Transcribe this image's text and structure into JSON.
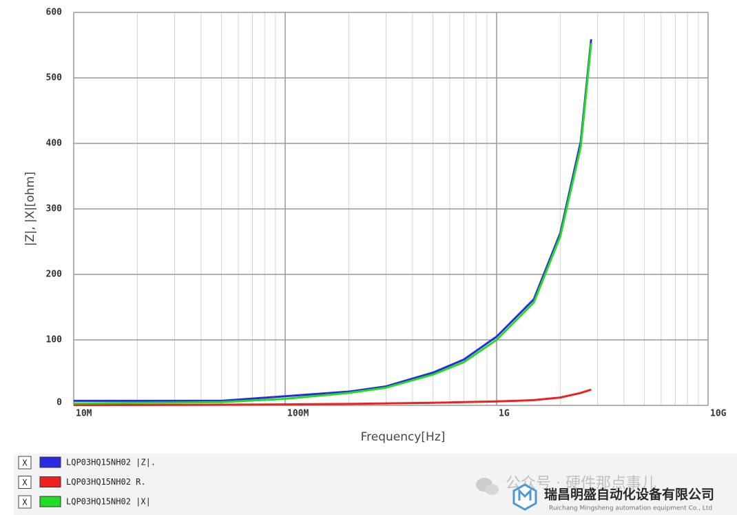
{
  "chart_data": {
    "type": "line",
    "x_label": "Frequency[Hz]",
    "y_label": "|Z|, |X|[ohm]",
    "x": [
      10000000,
      50000000,
      100000000,
      200000000,
      300000000,
      500000000,
      700000000,
      1000000000,
      1500000000,
      2000000000,
      2500000000,
      2800000000
    ],
    "series": [
      {
        "name": "LQP03HQ15NH02  |Z|.",
        "color": "#2a2ae0",
        "values": [
          7,
          7,
          14,
          21,
          29,
          50,
          70,
          105,
          162,
          263,
          403,
          559
        ]
      },
      {
        "name": "LQP03HQ15NH02  R.",
        "color": "#ee2020",
        "values": [
          0.5,
          1,
          1.5,
          2.2,
          3,
          4,
          5,
          6,
          8,
          12,
          19,
          24
        ]
      },
      {
        "name": "LQP03HQ15NH02  |X|",
        "color": "#22dd22",
        "values": [
          3,
          5,
          10,
          19,
          27,
          47,
          66,
          100,
          157,
          258,
          395,
          553
        ]
      }
    ],
    "xscale": "log",
    "xlim": [
      10000000,
      10000000000
    ],
    "xticks": [
      {
        "value": 10000000,
        "label": "10M"
      },
      {
        "value": 100000000,
        "label": "100M"
      },
      {
        "value": 1000000000,
        "label": "1G"
      },
      {
        "value": 10000000000,
        "label": "10G"
      }
    ],
    "ylim": [
      0,
      600
    ],
    "yticks": [
      0,
      100,
      200,
      300,
      400,
      500,
      600
    ],
    "grid": true,
    "legend_check": "X"
  },
  "watermark": {
    "channel": "公众号 · 硬件那点事儿",
    "company": "瑞昌明盛自动化设备有限公司",
    "company_en": "Ruichang Mingsheng automation equipment Co., Ltd"
  }
}
